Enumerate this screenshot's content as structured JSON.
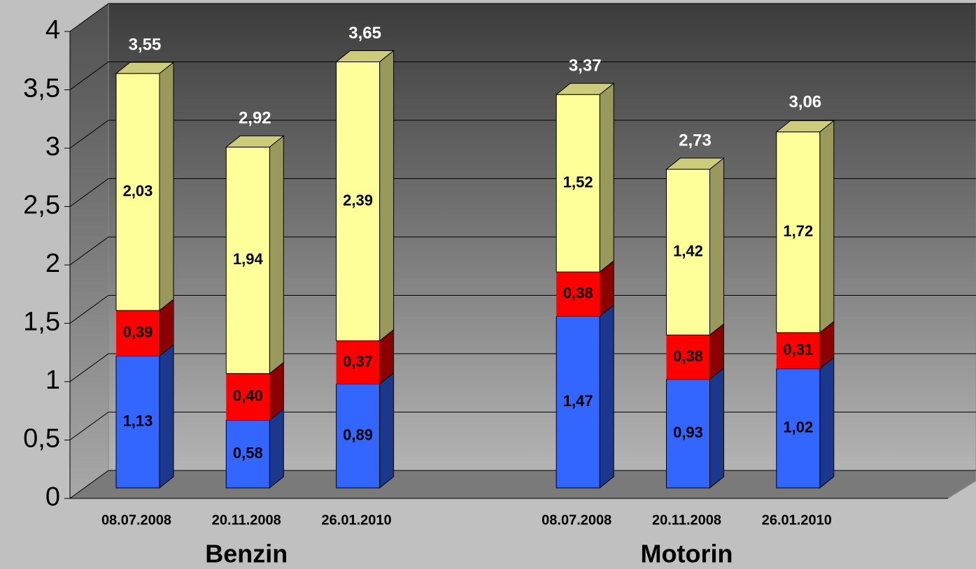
{
  "chart_data": {
    "type": "bar3d_stacked",
    "categories": [
      "08.07.2008",
      "20.11.2008",
      "26.01.2010",
      null,
      "08.07.2008",
      "20.11.2008",
      "26.01.2010"
    ],
    "groups": [
      {
        "label": "Benzin",
        "from": 0,
        "to": 2
      },
      {
        "label": "Motorin",
        "from": 4,
        "to": 6
      }
    ],
    "series": [
      {
        "color": "#3366ff",
        "values": [
          1.13,
          0.58,
          0.89,
          null,
          1.47,
          0.93,
          1.02
        ],
        "value_labels": [
          "1,13",
          "0,58",
          "0,89",
          null,
          "1,47",
          "0,93",
          "1,02"
        ]
      },
      {
        "color": "#ff0000",
        "values": [
          0.39,
          0.4,
          0.37,
          null,
          0.38,
          0.38,
          0.31
        ],
        "value_labels": [
          "0,39",
          "0,40",
          "0,37",
          null,
          "0,38",
          "0,38",
          "0,31"
        ]
      },
      {
        "color": "#ffff99",
        "values": [
          2.03,
          1.94,
          2.39,
          null,
          1.52,
          1.42,
          1.72
        ],
        "value_labels": [
          "2,03",
          "1,94",
          "2,39",
          null,
          "1,52",
          "1,42",
          "1,72"
        ]
      }
    ],
    "totals": {
      "values": [
        3.55,
        2.92,
        3.65,
        null,
        3.37,
        2.73,
        3.06
      ],
      "value_labels": [
        "3,55",
        "2,92",
        "3,65",
        null,
        "3,37",
        "2,73",
        "3,06"
      ]
    },
    "ylim": [
      0,
      4
    ],
    "yticks": [
      0,
      {
        "value": 0.5,
        "label": "0,5"
      },
      1,
      {
        "value": 1.5,
        "label": "1,5"
      },
      2,
      {
        "value": 2.5,
        "label": "2,5"
      },
      3,
      {
        "value": 3.5,
        "label": "3,5"
      },
      4
    ],
    "grid": true
  }
}
